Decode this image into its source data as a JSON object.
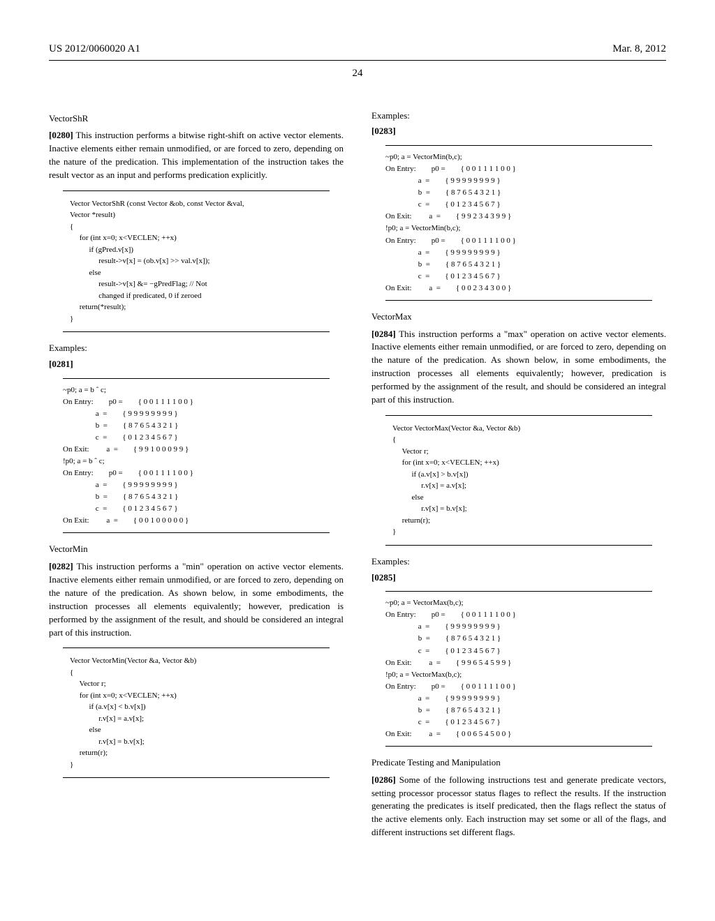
{
  "header": {
    "pub_number": "US 2012/0060020 A1",
    "pub_date": "Mar. 8, 2012",
    "page_number": "24"
  },
  "left_column": {
    "section1_title": "VectorShR",
    "para_0280_num": "[0280]",
    "para_0280": "   This instruction performs a bitwise right-shift on active vector elements. Inactive elements either remain unmodified, or are forced to zero, depending on the nature of the predication. This implementation of the instruction takes the result vector as an input and performs predication explicitly.",
    "code1": "Vector VectorShR (const Vector &ob, const Vector &val,\nVector *result)\n{\n     for (int x=0; x<VECLEN; ++x)\n          if (gPred.v[x])\n               result->v[x] = (ob.v[x] >> val.v[x]);\n          else\n               result->v[x] &= −gPredFlag; // Not\n               changed if predicated, 0 if zeroed\n     return(*result);\n}",
    "examples1_label": "Examples:",
    "para_0281_num": "[0281]",
    "ex1": "~p0; a = b ˆ c;\nOn Entry:        p0 =        { 0 0 1 1 1 1 0 0 }\n                 a  =        { 9 9 9 9 9 9 9 9 }\n                 b  =        { 8 7 6 5 4 3 2 1 }\n                 c  =        { 0 1 2 3 4 5 6 7 }\nOn Exit:         a  =        { 9 9 1 0 0 0 9 9 }\n!p0; a = b ˆ c;\nOn Entry:        p0 =        { 0 0 1 1 1 1 0 0 }\n                 a  =        { 9 9 9 9 9 9 9 9 }\n                 b  =        { 8 7 6 5 4 3 2 1 }\n                 c  =        { 0 1 2 3 4 5 6 7 }\nOn Exit:         a  =        { 0 0 1 0 0 0 0 0 }",
    "section2_title": "VectorMin",
    "para_0282_num": "[0282]",
    "para_0282": "   This instruction performs a \"min\" operation on active vector elements. Inactive elements either remain unmodified, or are forced to zero, depending on the nature of the predication. As shown below, in some embodiments, the instruction processes all elements equivalently; however, predication is performed by the assignment of the result, and should be considered an integral part of this instruction.",
    "code2": "Vector VectorMin(Vector &a, Vector &b)\n{\n     Vector r;\n     for (int x=0; x<VECLEN; ++x)\n          if (a.v[x] < b.v[x])\n               r.v[x] = a.v[x];\n          else\n               r.v[x] = b.v[x];\n     return(r);\n}"
  },
  "right_column": {
    "examples1_label": "Examples:",
    "para_0283_num": "[0283]",
    "ex1": "~p0; a = VectorMin(b,c);\nOn Entry:        p0 =        { 0 0 1 1 1 1 0 0 }\n                 a  =        { 9 9 9 9 9 9 9 9 }\n                 b  =        { 8 7 6 5 4 3 2 1 }\n                 c  =        { 0 1 2 3 4 5 6 7 }\nOn Exit:         a  =        { 9 9 2 3 4 3 9 9 }\n!p0; a = VectorMin(b,c);\nOn Entry:        p0 =        { 0 0 1 1 1 1 0 0 }\n                 a  =        { 9 9 9 9 9 9 9 9 }\n                 b  =        { 8 7 6 5 4 3 2 1 }\n                 c  =        { 0 1 2 3 4 5 6 7 }\nOn Exit:         a  =        { 0 0 2 3 4 3 0 0 }",
    "section1_title": "VectorMax",
    "para_0284_num": "[0284]",
    "para_0284": "   This instruction performs a \"max\" operation on active vector elements. Inactive elements either remain unmodified, or are forced to zero, depending on the nature of the predication. As shown below, in some embodiments, the instruction processes all elements equivalently; however, predication is performed by the assignment of the result, and should be considered an integral part of this instruction.",
    "code1": "Vector VectorMax(Vector &a, Vector &b)\n{\n     Vector r;\n     for (int x=0; x<VECLEN; ++x)\n          if (a.v[x] > b.v[x])\n               r.v[x] = a.v[x];\n          else\n               r.v[x] = b.v[x];\n     return(r);\n}",
    "examples2_label": "Examples:",
    "para_0285_num": "[0285]",
    "ex2": "~p0; a = VectorMax(b,c);\nOn Entry:        p0 =        { 0 0 1 1 1 1 0 0 }\n                 a  =        { 9 9 9 9 9 9 9 9 }\n                 b  =        { 8 7 6 5 4 3 2 1 }\n                 c  =        { 0 1 2 3 4 5 6 7 }\nOn Exit:         a  =        { 9 9 6 5 4 5 9 9 }\n!p0; a = VectorMax(b,c);\nOn Entry:        p0 =        { 0 0 1 1 1 1 0 0 }\n                 a  =        { 9 9 9 9 9 9 9 9 }\n                 b  =        { 8 7 6 5 4 3 2 1 }\n                 c  =        { 0 1 2 3 4 5 6 7 }\nOn Exit:         a  =        { 0 0 6 5 4 5 0 0 }",
    "section2_title": "Predicate Testing and Manipulation",
    "para_0286_num": "[0286]",
    "para_0286": "   Some of the following instructions test and generate predicate vectors, setting processor processor status flages to reflect the results. If the instruction generating the predicates is itself predicated, then the flags reflect the status of the active elements only. Each instruction may set some or all of the flags, and different instructions set different flags."
  }
}
